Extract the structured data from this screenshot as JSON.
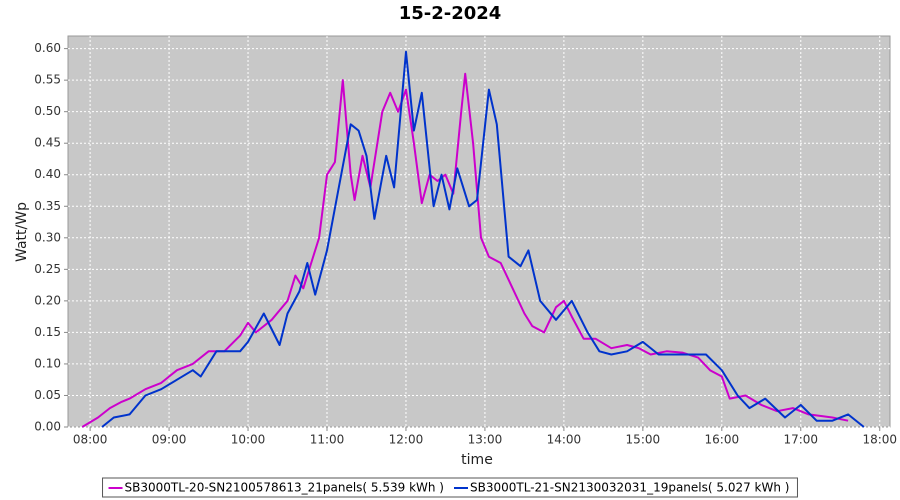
{
  "chart_data": {
    "type": "line",
    "title": "15-2-2024",
    "x_label": "time",
    "y_label": "Watt/Wp",
    "xlim": [
      7.72,
      18.13
    ],
    "ylim": [
      0,
      0.62
    ],
    "grid": true,
    "legend": "bottom",
    "xticks": [
      {
        "value": 8,
        "label": "08:00"
      },
      {
        "value": 9,
        "label": "09:00"
      },
      {
        "value": 10,
        "label": "10:00"
      },
      {
        "value": 11,
        "label": "11:00"
      },
      {
        "value": 12,
        "label": "12:00"
      },
      {
        "value": 13,
        "label": "13:00"
      },
      {
        "value": 14,
        "label": "14:00"
      },
      {
        "value": 15,
        "label": "15:00"
      },
      {
        "value": 16,
        "label": "16:00"
      },
      {
        "value": 17,
        "label": "17:00"
      },
      {
        "value": 18,
        "label": "18:00"
      }
    ],
    "yticks": [
      {
        "value": 0,
        "label": "0.00"
      },
      {
        "value": 0.05,
        "label": "0.05"
      },
      {
        "value": 0.1,
        "label": "0.10"
      },
      {
        "value": 0.15,
        "label": "0.15"
      },
      {
        "value": 0.2,
        "label": "0.20"
      },
      {
        "value": 0.25,
        "label": "0.25"
      },
      {
        "value": 0.3,
        "label": "0.30"
      },
      {
        "value": 0.35,
        "label": "0.35"
      },
      {
        "value": 0.4,
        "label": "0.40"
      },
      {
        "value": 0.45,
        "label": "0.45"
      },
      {
        "value": 0.5,
        "label": "0.50"
      },
      {
        "value": 0.55,
        "label": "0.55"
      },
      {
        "value": 0.6,
        "label": "0.60"
      }
    ],
    "series": [
      {
        "name": "SB3000TL-20-SN2100578613_21panels( 5.539 kWh )",
        "color": "#cc00cc",
        "x": [
          7.9,
          8.1,
          8.25,
          8.4,
          8.5,
          8.7,
          8.9,
          9.0,
          9.1,
          9.3,
          9.5,
          9.7,
          9.9,
          10.0,
          10.1,
          10.3,
          10.5,
          10.6,
          10.7,
          10.8,
          10.9,
          11.0,
          11.1,
          11.2,
          11.3,
          11.35,
          11.45,
          11.55,
          11.7,
          11.8,
          11.9,
          12.0,
          12.1,
          12.2,
          12.3,
          12.4,
          12.5,
          12.6,
          12.7,
          12.75,
          12.85,
          12.95,
          13.05,
          13.2,
          13.35,
          13.5,
          13.6,
          13.75,
          13.9,
          14.0,
          14.1,
          14.25,
          14.4,
          14.6,
          14.8,
          14.95,
          15.1,
          15.3,
          15.5,
          15.7,
          15.85,
          16.0,
          16.1,
          16.3,
          16.5,
          16.7,
          16.9,
          17.1,
          17.4,
          17.6
        ],
        "values": [
          0.0,
          0.015,
          0.03,
          0.04,
          0.045,
          0.06,
          0.07,
          0.08,
          0.09,
          0.1,
          0.12,
          0.12,
          0.145,
          0.165,
          0.15,
          0.17,
          0.2,
          0.24,
          0.22,
          0.26,
          0.3,
          0.4,
          0.42,
          0.55,
          0.4,
          0.36,
          0.43,
          0.38,
          0.5,
          0.53,
          0.5,
          0.535,
          0.45,
          0.355,
          0.4,
          0.39,
          0.4,
          0.37,
          0.5,
          0.56,
          0.45,
          0.3,
          0.27,
          0.26,
          0.22,
          0.18,
          0.16,
          0.15,
          0.19,
          0.2,
          0.175,
          0.14,
          0.14,
          0.125,
          0.13,
          0.125,
          0.115,
          0.12,
          0.118,
          0.11,
          0.09,
          0.08,
          0.045,
          0.05,
          0.035,
          0.025,
          0.03,
          0.02,
          0.015,
          0.01
        ]
      },
      {
        "name": "SB3000TL-21-SN2130032031_19panels( 5.027 kWh )",
        "color": "#0033cc",
        "x": [
          8.15,
          8.3,
          8.5,
          8.7,
          8.9,
          9.1,
          9.3,
          9.4,
          9.6,
          9.9,
          10.0,
          10.2,
          10.4,
          10.5,
          10.65,
          10.75,
          10.85,
          11.0,
          11.15,
          11.3,
          11.4,
          11.5,
          11.6,
          11.75,
          11.85,
          12.0,
          12.1,
          12.2,
          12.35,
          12.45,
          12.55,
          12.65,
          12.8,
          12.9,
          13.05,
          13.15,
          13.3,
          13.45,
          13.55,
          13.7,
          13.9,
          14.1,
          14.3,
          14.45,
          14.6,
          14.8,
          15.0,
          15.2,
          15.4,
          15.6,
          15.8,
          16.0,
          16.2,
          16.35,
          16.55,
          16.8,
          17.0,
          17.2,
          17.4,
          17.6,
          17.8
        ],
        "values": [
          0.0,
          0.015,
          0.02,
          0.05,
          0.06,
          0.075,
          0.09,
          0.08,
          0.12,
          0.12,
          0.135,
          0.18,
          0.13,
          0.18,
          0.215,
          0.26,
          0.21,
          0.28,
          0.38,
          0.48,
          0.47,
          0.43,
          0.33,
          0.43,
          0.38,
          0.595,
          0.47,
          0.53,
          0.35,
          0.4,
          0.345,
          0.41,
          0.35,
          0.36,
          0.535,
          0.48,
          0.27,
          0.255,
          0.28,
          0.2,
          0.17,
          0.2,
          0.15,
          0.12,
          0.115,
          0.12,
          0.135,
          0.115,
          0.115,
          0.115,
          0.115,
          0.09,
          0.05,
          0.03,
          0.045,
          0.015,
          0.035,
          0.01,
          0.01,
          0.02,
          0.0
        ]
      }
    ]
  }
}
